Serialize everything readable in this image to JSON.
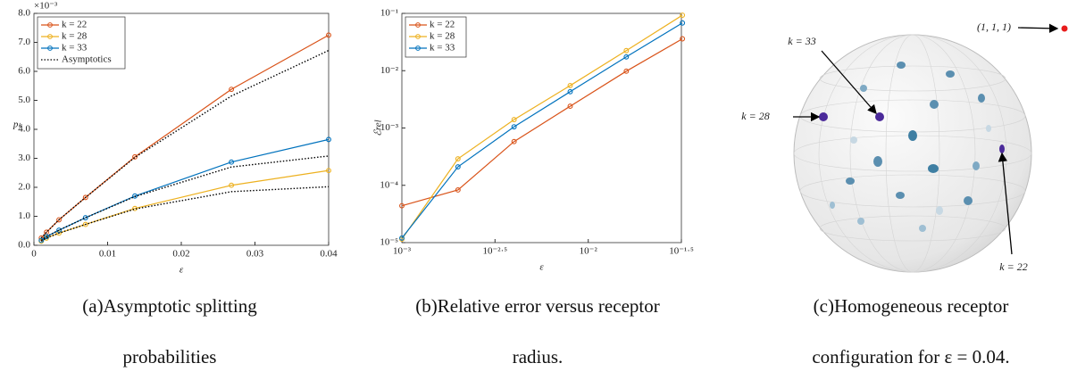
{
  "chart_data": [
    {
      "type": "line",
      "x_label": "ε",
      "y_label": "pₖ",
      "y_multiplier": "×10⁻³",
      "x": [
        0.001,
        0.0017,
        0.0034,
        0.007,
        0.0137,
        0.0268,
        0.04
      ],
      "xlim": [
        0,
        0.04
      ],
      "xticks": [
        0,
        0.01,
        0.02,
        0.03,
        0.04
      ],
      "ylim": [
        0,
        8
      ],
      "yticks": [
        {
          "value": 0,
          "label": "0.0"
        },
        {
          "value": 1,
          "label": "1.0"
        },
        {
          "value": 2,
          "label": "2.0"
        },
        {
          "value": 3,
          "label": "3.0"
        },
        {
          "value": 4,
          "label": "4.0"
        },
        {
          "value": 5,
          "label": "5.0"
        },
        {
          "value": 6,
          "label": "6.0"
        },
        {
          "value": 7,
          "label": "7.0"
        },
        {
          "value": 8,
          "label": "8.0"
        }
      ],
      "legend": "upper left",
      "series": [
        {
          "name": "k = 22",
          "color": "#d95319",
          "marker": true,
          "values": [
            0.25,
            0.45,
            0.88,
            1.65,
            3.05,
            5.38,
            7.25
          ]
        },
        {
          "name": "k = 28",
          "color": "#edb120",
          "marker": true,
          "values": [
            0.14,
            0.25,
            0.42,
            0.72,
            1.27,
            2.07,
            2.58
          ]
        },
        {
          "name": "k = 33",
          "color": "#0072bd",
          "marker": true,
          "values": [
            0.17,
            0.3,
            0.52,
            0.95,
            1.7,
            2.87,
            3.65
          ]
        },
        {
          "name": "Asymptotics",
          "color": "#000000",
          "line_style": "dotted",
          "values": [
            0.25,
            0.45,
            0.88,
            1.65,
            3.03,
            5.15,
            6.72
          ]
        },
        {
          "color": "#000000",
          "line_style": "dotted",
          "values": [
            0.17,
            0.3,
            0.52,
            0.95,
            1.68,
            2.7,
            3.08
          ]
        },
        {
          "color": "#000000",
          "line_style": "dotted",
          "values": [
            0.14,
            0.25,
            0.42,
            0.72,
            1.25,
            1.85,
            2.02
          ]
        }
      ]
    },
    {
      "type": "line",
      "x_label": "ε",
      "y_label": "ℰrel",
      "log_x": true,
      "log_y": true,
      "x": [
        0.001,
        0.002,
        0.004,
        0.008,
        0.016,
        0.032
      ],
      "xlim": [
        0.001,
        0.0316
      ],
      "xticks": [
        {
          "value": 0.001,
          "label": "10⁻³"
        },
        {
          "value": 0.00316,
          "label": "10⁻²·⁵"
        },
        {
          "value": 0.01,
          "label": "10⁻²"
        },
        {
          "value": 0.0316,
          "label": "10⁻¹·⁵"
        }
      ],
      "ylim": [
        1e-05,
        0.1
      ],
      "yticks": [
        {
          "value": 1e-05,
          "label": "10⁻⁵"
        },
        {
          "value": 0.0001,
          "label": "10⁻⁴"
        },
        {
          "value": 0.001,
          "label": "10⁻³"
        },
        {
          "value": 0.01,
          "label": "10⁻²"
        },
        {
          "value": 0.1,
          "label": "10⁻¹"
        }
      ],
      "legend": "upper left",
      "series": [
        {
          "name": "k = 22",
          "color": "#d95319",
          "marker": true,
          "values": [
            4.4e-05,
            8.3e-05,
            0.00058,
            0.0024,
            0.0098,
            0.036
          ]
        },
        {
          "name": "k = 28",
          "color": "#edb120",
          "marker": true,
          "values": [
            1.15e-05,
            0.00029,
            0.0014,
            0.0055,
            0.0224,
            0.093
          ]
        },
        {
          "name": "k = 33",
          "color": "#0072bd",
          "marker": true,
          "values": [
            1.2e-05,
            0.00021,
            0.00105,
            0.0043,
            0.0174,
            0.068
          ]
        }
      ]
    }
  ],
  "diagram": {
    "labels": {
      "k33": "k = 33",
      "k28": "k = 28",
      "k22": "k = 22",
      "point": "(1, 1, 1)"
    }
  },
  "captions": [
    [
      "(a)Asymptotic splitting",
      "probabilities"
    ],
    [
      "(b)Relative error versus receptor",
      "radius."
    ],
    [
      "(c)Homogeneous receptor",
      "configuration for ε = 0.04."
    ]
  ]
}
